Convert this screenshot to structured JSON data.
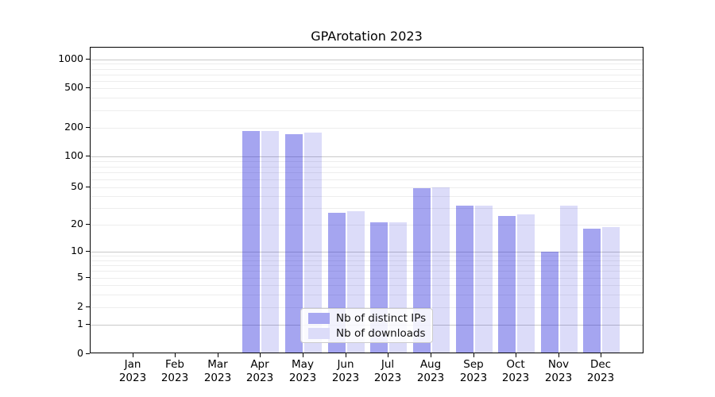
{
  "title": "GPArotation 2023",
  "colors": {
    "distinct_ips_bar": "rgba(40,40,220,0.42)",
    "downloads_bar": "rgba(40,40,220,0.16)",
    "distinct_ips_solid": "#a8a8f1",
    "downloads_solid": "#dcdcf9",
    "grid_major": "#c9c9c9",
    "grid_minor": "#ededed",
    "axis": "#000000",
    "legend_border": "#cccccc"
  },
  "legend": {
    "items": [
      "Nb of distinct IPs",
      "Nb of downloads"
    ]
  },
  "chart_data": {
    "type": "bar",
    "title": "GPArotation 2023",
    "xlabel": "",
    "ylabel": "",
    "yscale": "log-like",
    "ylim": [
      0,
      1000
    ],
    "y_ticks": [
      0,
      1,
      2,
      5,
      10,
      20,
      50,
      100,
      200,
      500,
      1000
    ],
    "grid": "both",
    "legend_position": "lower center",
    "categories": [
      "Jan 2023",
      "Feb 2023",
      "Mar 2023",
      "Apr 2023",
      "May 2023",
      "Jun 2023",
      "Jul 2023",
      "Aug 2023",
      "Sep 2023",
      "Oct 2023",
      "Nov 2023",
      "Dec 2023"
    ],
    "series": [
      {
        "name": "Nb of distinct IPs",
        "key": "distinct-ips",
        "values": [
          0,
          0,
          0,
          185,
          170,
          27,
          21,
          49,
          32,
          25,
          10,
          18
        ]
      },
      {
        "name": "Nb of downloads",
        "key": "downloads",
        "values": [
          0,
          0,
          0,
          186,
          177,
          28,
          21,
          50,
          32,
          26,
          32,
          19
        ]
      }
    ]
  }
}
